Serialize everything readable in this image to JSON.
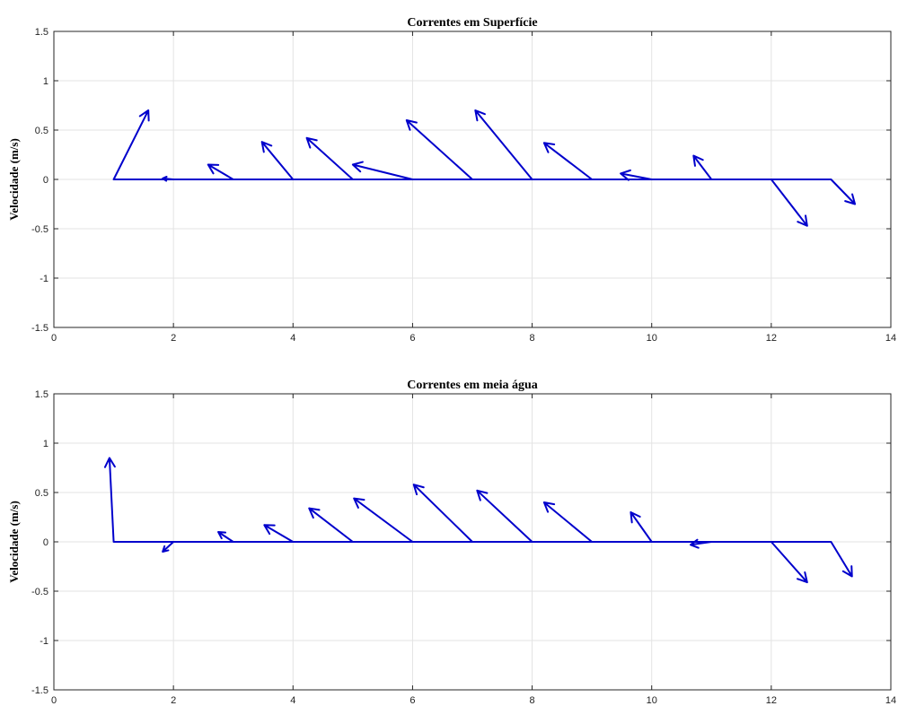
{
  "chart_data": [
    {
      "type": "quiver",
      "title": "Correntes em Superfície",
      "xlabel": "",
      "ylabel": "Velocidade (m/s)",
      "xlim": [
        0,
        14
      ],
      "ylim": [
        -1.5,
        1.5
      ],
      "xticks": [
        "0",
        "2",
        "4",
        "6",
        "8",
        "10",
        "12",
        "14"
      ],
      "yticks": [
        "-1.5",
        "-1",
        "-0.5",
        "0",
        "0.5",
        "1",
        "1.5"
      ],
      "grid": true,
      "color": "#0000cc",
      "vectors": [
        {
          "x": 1,
          "u": 0.58,
          "v": 0.7
        },
        {
          "x": 2,
          "u": -0.18,
          "v": 0.01
        },
        {
          "x": 3,
          "u": -0.42,
          "v": 0.15
        },
        {
          "x": 4,
          "u": -0.52,
          "v": 0.38
        },
        {
          "x": 5,
          "u": -0.77,
          "v": 0.42
        },
        {
          "x": 6,
          "u": -1.0,
          "v": 0.15
        },
        {
          "x": 7,
          "u": -1.1,
          "v": 0.6
        },
        {
          "x": 8,
          "u": -0.95,
          "v": 0.7
        },
        {
          "x": 9,
          "u": -0.8,
          "v": 0.37
        },
        {
          "x": 10,
          "u": -0.52,
          "v": 0.06
        },
        {
          "x": 11,
          "u": -0.3,
          "v": 0.24
        },
        {
          "x": 12,
          "u": 0.6,
          "v": -0.47
        },
        {
          "x": 13,
          "u": 0.4,
          "v": -0.25
        }
      ]
    },
    {
      "type": "quiver",
      "title": "Correntes em meia água",
      "xlabel": "",
      "ylabel": "Velocidade (m/s)",
      "xlim": [
        0,
        14
      ],
      "ylim": [
        -1.5,
        1.5
      ],
      "xticks": [
        "0",
        "2",
        "4",
        "6",
        "8",
        "10",
        "12",
        "14"
      ],
      "yticks": [
        "-1.5",
        "-1",
        "-0.5",
        "0",
        "0.5",
        "1",
        "1.5"
      ],
      "grid": true,
      "color": "#0000cc",
      "vectors": [
        {
          "x": 1,
          "u": -0.07,
          "v": 0.85
        },
        {
          "x": 2,
          "u": -0.18,
          "v": -0.1
        },
        {
          "x": 3,
          "u": -0.25,
          "v": 0.1
        },
        {
          "x": 4,
          "u": -0.48,
          "v": 0.17
        },
        {
          "x": 5,
          "u": -0.73,
          "v": 0.34
        },
        {
          "x": 6,
          "u": -0.98,
          "v": 0.44
        },
        {
          "x": 7,
          "u": -0.98,
          "v": 0.58
        },
        {
          "x": 8,
          "u": -0.92,
          "v": 0.52
        },
        {
          "x": 9,
          "u": -0.8,
          "v": 0.4
        },
        {
          "x": 10,
          "u": -0.35,
          "v": 0.3
        },
        {
          "x": 11,
          "u": -0.35,
          "v": -0.03
        },
        {
          "x": 12,
          "u": 0.6,
          "v": -0.41
        },
        {
          "x": 13,
          "u": 0.35,
          "v": -0.35
        }
      ]
    }
  ]
}
